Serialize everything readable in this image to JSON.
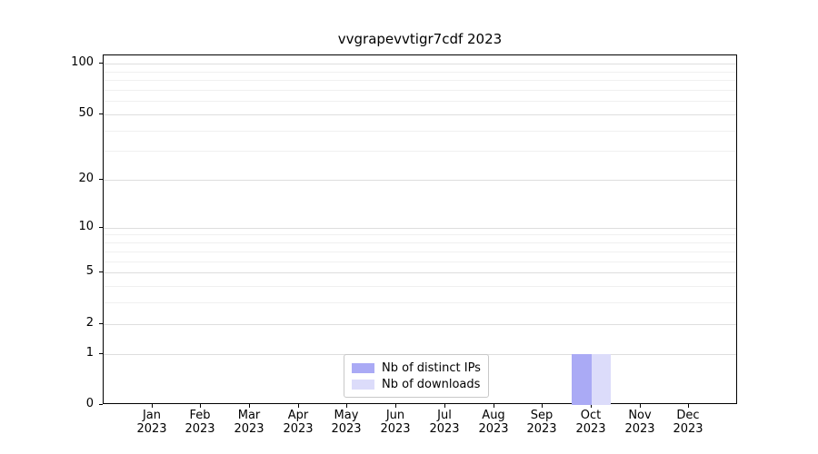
{
  "chart_data": {
    "type": "bar",
    "title": "vvgrapevvtigr7cdf 2023",
    "categories": [
      "Jan 2023",
      "Feb 2023",
      "Mar 2023",
      "Apr 2023",
      "May 2023",
      "Jun 2023",
      "Jul 2023",
      "Aug 2023",
      "Sep 2023",
      "Oct 2023",
      "Nov 2023",
      "Dec 2023"
    ],
    "series": [
      {
        "name": "Nb of distinct IPs",
        "color": "#aaaaf5",
        "values": [
          0,
          0,
          0,
          0,
          0,
          0,
          0,
          0,
          0,
          1,
          0,
          0
        ]
      },
      {
        "name": "Nb of downloads",
        "color": "#dcdcfa",
        "values": [
          0,
          0,
          0,
          0,
          0,
          0,
          0,
          0,
          0,
          1,
          0,
          0
        ]
      }
    ],
    "xlabel": "",
    "ylabel": "",
    "y_scale": "log1p",
    "ylim": [
      0,
      112
    ],
    "y_major_ticks": [
      0,
      1,
      2,
      5,
      10,
      20,
      50,
      100
    ],
    "y_minor_ticks": [
      3,
      4,
      6,
      7,
      8,
      9,
      30,
      40,
      60,
      70,
      80,
      90
    ],
    "grid": true,
    "legend_position": "lower-center"
  },
  "colors": {
    "grid_major": "#dedede",
    "grid_minor": "#f0f0f0",
    "axis": "#000000",
    "legend_border": "#c8c8c8"
  }
}
